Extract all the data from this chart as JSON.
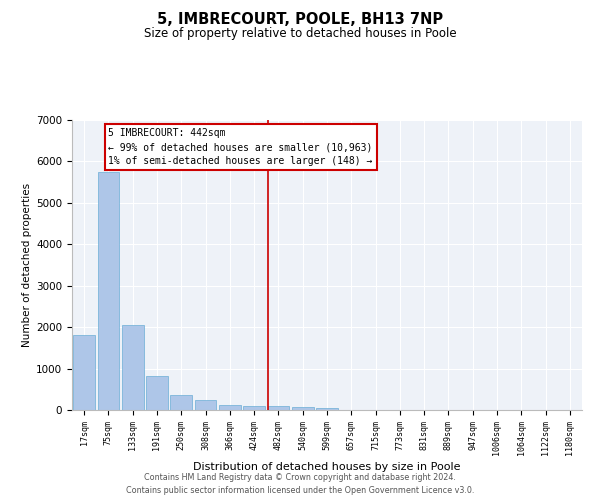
{
  "title": "5, IMBRECOURT, POOLE, BH13 7NP",
  "subtitle": "Size of property relative to detached houses in Poole",
  "xlabel": "Distribution of detached houses by size in Poole",
  "ylabel": "Number of detached properties",
  "bar_color": "#aec6e8",
  "bar_edge_color": "#6baed6",
  "background_color": "#eef2f8",
  "grid_color": "#ffffff",
  "categories": [
    "17sqm",
    "75sqm",
    "133sqm",
    "191sqm",
    "250sqm",
    "308sqm",
    "366sqm",
    "424sqm",
    "482sqm",
    "540sqm",
    "599sqm",
    "657sqm",
    "715sqm",
    "773sqm",
    "831sqm",
    "889sqm",
    "947sqm",
    "1006sqm",
    "1064sqm",
    "1122sqm",
    "1180sqm"
  ],
  "values": [
    1800,
    5750,
    2050,
    830,
    370,
    230,
    120,
    90,
    90,
    65,
    50,
    0,
    0,
    0,
    0,
    0,
    0,
    0,
    0,
    0,
    0
  ],
  "vline_x": 7.55,
  "vline_color": "#cc0000",
  "annotation_text": "5 IMBRECOURT: 442sqm\n← 99% of detached houses are smaller (10,963)\n1% of semi-detached houses are larger (148) →",
  "annotation_box_color": "#cc0000",
  "ylim": [
    0,
    7000
  ],
  "yticks": [
    0,
    1000,
    2000,
    3000,
    4000,
    5000,
    6000,
    7000
  ],
  "footer_line1": "Contains HM Land Registry data © Crown copyright and database right 2024.",
  "footer_line2": "Contains public sector information licensed under the Open Government Licence v3.0."
}
